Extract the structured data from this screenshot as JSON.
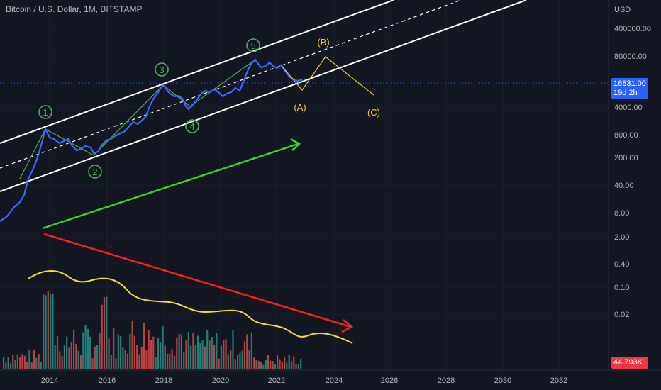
{
  "header": {
    "title": "Bitcoin / U.S. Dollar, 1M, BITSTAMP"
  },
  "axis": {
    "unit": "USD"
  },
  "last_price": {
    "value": "16831.00",
    "countdown": "19d 2h"
  },
  "volume_tag": {
    "value": "44.793K"
  },
  "chart_data": {
    "type": "line",
    "title": "Bitcoin / U.S. Dollar, 1M, BITSTAMP",
    "xlabel": "",
    "ylabel": "USD",
    "y_scale": "log",
    "x_ticks": [
      "2014",
      "2016",
      "2018",
      "2020",
      "2022",
      "2024",
      "2026",
      "2028",
      "2030",
      "2032"
    ],
    "y_ticks": [
      "400000.00",
      "80000.00",
      "4000.00",
      "800.00",
      "200.00",
      "40.00",
      "8.00",
      "2.00",
      "0.40",
      "0.10",
      "0.02"
    ],
    "series": [
      {
        "values_x": [
          2011.7,
          2011.9,
          2012.3,
          2012.7,
          2013.0,
          2013.3,
          2013.5,
          2013.7,
          2013.9,
          2014.1,
          2014.4,
          2014.7,
          2015.0,
          2015.3,
          2015.6,
          2015.9,
          2016.3,
          2016.6,
          2016.9,
          2017.2,
          2017.5,
          2017.8,
          2017.95,
          2018.2,
          2018.5,
          2018.8,
          2019.0,
          2019.3,
          2019.5,
          2019.8,
          2020.0,
          2020.2,
          2020.5,
          2020.8,
          2021.0,
          2021.2,
          2021.4,
          2021.6,
          2021.85,
          2022.1,
          2022.4,
          2022.6,
          2022.9
        ],
        "values_y": [
          2.5,
          3,
          5,
          11,
          15,
          100,
          70,
          130,
          900,
          650,
          450,
          600,
          230,
          250,
          280,
          380,
          420,
          600,
          800,
          1100,
          2500,
          6000,
          14000,
          9500,
          6500,
          6200,
          3500,
          8000,
          11000,
          9000,
          7500,
          8500,
          9500,
          13500,
          29000,
          58000,
          38000,
          42000,
          60000,
          38000,
          21000,
          19500,
          16831
        ]
      }
    ],
    "wave_labels": [
      {
        "label": "1",
        "x": 2013.9,
        "y": 1100
      },
      {
        "label": "2",
        "x": 2015.1,
        "y": 190
      },
      {
        "label": "3",
        "x": 2017.95,
        "y": 20000
      },
      {
        "label": "4",
        "x": 2018.95,
        "y": 3300
      },
      {
        "label": "5",
        "x": 2021.85,
        "y": 69000
      }
    ],
    "projection": [
      {
        "label": "(A)",
        "x": 2022.9,
        "y": 16000
      },
      {
        "label": "(B)",
        "x": 2023.7,
        "y": 60000
      },
      {
        "label": "(C)",
        "x": 2025.0,
        "y": 3800
      }
    ],
    "volume": {
      "last": "44.793K"
    },
    "colors": {
      "price": "#3d68ff",
      "waves": "#4caf50",
      "projection": "#f5c542",
      "channel": "#ffffff",
      "up_arrow": "#3bd12f",
      "down_arrow": "#ff1f1f",
      "vol_up": "#26a69a",
      "vol_down": "#ef5350"
    }
  }
}
